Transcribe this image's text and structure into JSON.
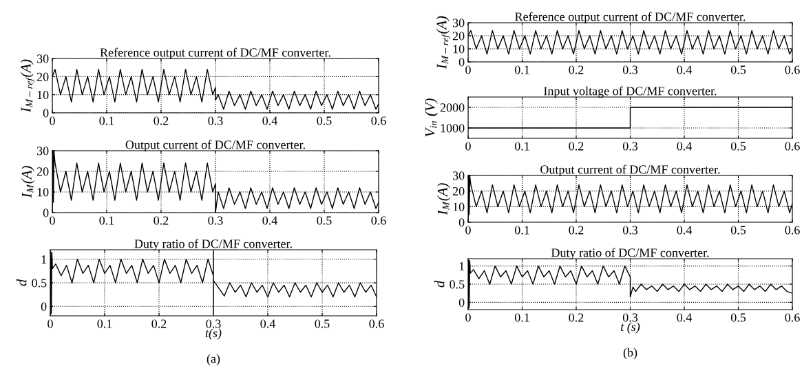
{
  "chart_data": [
    {
      "type": "line",
      "title": "Reference output current of DC/MF converter.",
      "ylabel": "I$_{M−ref}$(A)",
      "xlim": [
        0,
        0.6
      ],
      "xticks": [
        0,
        0.1,
        0.2,
        0.3,
        0.4,
        0.5,
        0.6
      ],
      "ylim": [
        0,
        30
      ],
      "yticks": [
        0,
        10,
        20,
        30
      ],
      "grid": true,
      "series": [
        {
          "color": "#000000",
          "x": [
            0,
            0.005,
            0.015,
            0.025,
            0.035,
            0.045,
            0.055,
            0.065,
            0.075,
            0.085,
            0.095,
            0.105,
            0.115,
            0.125,
            0.135,
            0.145,
            0.155,
            0.165,
            0.175,
            0.185,
            0.195,
            0.205,
            0.215,
            0.225,
            0.235,
            0.245,
            0.255,
            0.265,
            0.275,
            0.285,
            0.295,
            0.3,
            0.3,
            0.305,
            0.315,
            0.325,
            0.335,
            0.345,
            0.355,
            0.365,
            0.375,
            0.385,
            0.395,
            0.405,
            0.415,
            0.425,
            0.435,
            0.445,
            0.455,
            0.465,
            0.475,
            0.485,
            0.495,
            0.505,
            0.515,
            0.525,
            0.535,
            0.545,
            0.555,
            0.565,
            0.575,
            0.585,
            0.595,
            0.6
          ],
          "values": [
            20,
            24,
            10,
            20,
            6,
            24,
            10,
            20,
            6,
            24,
            10,
            20,
            6,
            24,
            10,
            20,
            6,
            24,
            10,
            20,
            6,
            24,
            10,
            20,
            6,
            24,
            10,
            20,
            6,
            24,
            10,
            14,
            7,
            10,
            2,
            12,
            4,
            10,
            2,
            12,
            4,
            10,
            2,
            12,
            4,
            10,
            2,
            12,
            4,
            10,
            2,
            12,
            4,
            10,
            2,
            12,
            4,
            10,
            2,
            12,
            4,
            10,
            2,
            5
          ]
        }
      ]
    },
    {
      "type": "line",
      "title": "Output current of DC/MF converter.",
      "ylabel": "I$_{M}$(A)",
      "xlim": [
        0,
        0.6
      ],
      "xticks": [
        0,
        0.1,
        0.2,
        0.3,
        0.4,
        0.5,
        0.6
      ],
      "ylim": [
        0,
        30
      ],
      "yticks": [
        0,
        10,
        20,
        30
      ],
      "grid": true,
      "series": [
        {
          "color": "#000000",
          "x": [
            0,
            0.001,
            0.002,
            0.003,
            0.005,
            0.015,
            0.025,
            0.035,
            0.045,
            0.055,
            0.065,
            0.075,
            0.085,
            0.095,
            0.105,
            0.115,
            0.125,
            0.135,
            0.145,
            0.155,
            0.165,
            0.175,
            0.185,
            0.195,
            0.205,
            0.215,
            0.225,
            0.235,
            0.245,
            0.255,
            0.265,
            0.275,
            0.285,
            0.295,
            0.3,
            0.3,
            0.305,
            0.315,
            0.325,
            0.335,
            0.345,
            0.355,
            0.365,
            0.375,
            0.385,
            0.395,
            0.405,
            0.415,
            0.425,
            0.435,
            0.445,
            0.455,
            0.465,
            0.475,
            0.485,
            0.495,
            0.505,
            0.515,
            0.525,
            0.535,
            0.545,
            0.555,
            0.565,
            0.575,
            0.585,
            0.595,
            0.6
          ],
          "values": [
            0,
            30,
            5,
            30,
            24,
            10,
            20,
            6,
            24,
            10,
            20,
            6,
            24,
            10,
            20,
            6,
            24,
            10,
            20,
            6,
            24,
            10,
            20,
            6,
            24,
            10,
            20,
            6,
            24,
            10,
            20,
            6,
            24,
            10,
            14,
            0,
            10,
            2,
            12,
            4,
            10,
            2,
            12,
            4,
            10,
            2,
            12,
            4,
            10,
            2,
            12,
            4,
            10,
            2,
            12,
            4,
            10,
            2,
            12,
            4,
            10,
            2,
            12,
            4,
            10,
            2,
            5
          ]
        }
      ]
    },
    {
      "type": "line",
      "title": "Duty ratio of DC/MF converter.",
      "ylabel": "d",
      "xlabel": "t(s)",
      "xlim": [
        0,
        0.6
      ],
      "xticks": [
        0,
        0.1,
        0.2,
        0.3,
        0.4,
        0.5,
        0.6
      ],
      "ylim": [
        -0.2,
        1.2
      ],
      "yticks": [
        0,
        0.5,
        1
      ],
      "grid": true,
      "annotations": [
        "(a)"
      ],
      "series": [
        {
          "color": "#000000",
          "x": [
            0,
            0.001,
            0.002,
            0.003,
            0.004,
            0.01,
            0.02,
            0.03,
            0.04,
            0.05,
            0.06,
            0.07,
            0.08,
            0.09,
            0.1,
            0.11,
            0.12,
            0.13,
            0.14,
            0.15,
            0.16,
            0.17,
            0.18,
            0.19,
            0.2,
            0.21,
            0.22,
            0.23,
            0.24,
            0.25,
            0.26,
            0.27,
            0.28,
            0.29,
            0.3,
            0.3,
            0.3,
            0.3,
            0.32,
            0.33,
            0.34,
            0.35,
            0.36,
            0.37,
            0.38,
            0.39,
            0.4,
            0.41,
            0.42,
            0.43,
            0.44,
            0.45,
            0.46,
            0.47,
            0.48,
            0.49,
            0.5,
            0.51,
            0.52,
            0.53,
            0.54,
            0.55,
            0.56,
            0.57,
            0.58,
            0.59,
            0.6
          ],
          "values": [
            -0.15,
            1.15,
            -0.15,
            1.15,
            0.8,
            0.9,
            0.65,
            0.87,
            0.5,
            1,
            0.7,
            0.87,
            0.5,
            1,
            0.7,
            0.87,
            0.5,
            1,
            0.7,
            0.87,
            0.5,
            1,
            0.7,
            0.87,
            0.5,
            1,
            0.7,
            0.87,
            0.5,
            1,
            0.7,
            0.87,
            0.5,
            1,
            0.65,
            1.15,
            -0.15,
            0.55,
            0.22,
            0.5,
            0.3,
            0.45,
            0.2,
            0.5,
            0.3,
            0.45,
            0.2,
            0.5,
            0.3,
            0.45,
            0.2,
            0.5,
            0.3,
            0.45,
            0.2,
            0.5,
            0.3,
            0.45,
            0.2,
            0.5,
            0.3,
            0.45,
            0.2,
            0.5,
            0.3,
            0.45,
            0.2
          ]
        }
      ]
    },
    {
      "type": "line",
      "title": "Reference output current of DC/MF converter.",
      "ylabel": "I$_{M−ref}$(A)",
      "xlim": [
        0,
        0.6
      ],
      "xticks": [
        0,
        0.1,
        0.2,
        0.3,
        0.4,
        0.5,
        0.6
      ],
      "ylim": [
        0,
        30
      ],
      "yticks": [
        0,
        10,
        20,
        30
      ],
      "grid": true,
      "series": [
        {
          "color": "#000000",
          "x": [
            0,
            0.005,
            0.015,
            0.025,
            0.035,
            0.045,
            0.055,
            0.065,
            0.075,
            0.085,
            0.095,
            0.105,
            0.115,
            0.125,
            0.135,
            0.145,
            0.155,
            0.165,
            0.175,
            0.185,
            0.195,
            0.205,
            0.215,
            0.225,
            0.235,
            0.245,
            0.255,
            0.265,
            0.275,
            0.285,
            0.295,
            0.305,
            0.315,
            0.325,
            0.335,
            0.345,
            0.355,
            0.365,
            0.375,
            0.385,
            0.395,
            0.405,
            0.415,
            0.425,
            0.435,
            0.445,
            0.455,
            0.465,
            0.475,
            0.485,
            0.495,
            0.505,
            0.515,
            0.525,
            0.535,
            0.545,
            0.555,
            0.565,
            0.575,
            0.585,
            0.595,
            0.6
          ],
          "values": [
            20,
            24,
            10,
            20,
            6,
            24,
            10,
            20,
            6,
            24,
            10,
            20,
            6,
            24,
            10,
            20,
            6,
            24,
            10,
            20,
            6,
            24,
            10,
            20,
            6,
            24,
            10,
            20,
            6,
            24,
            10,
            20,
            6,
            24,
            10,
            20,
            6,
            24,
            10,
            20,
            6,
            24,
            10,
            20,
            6,
            24,
            10,
            20,
            6,
            24,
            10,
            20,
            6,
            24,
            10,
            20,
            6,
            24,
            10,
            20,
            6,
            10
          ]
        }
      ]
    },
    {
      "type": "line",
      "title": "Input voltage of DC/MF converter.",
      "ylabel": "V$_{in}$ (V)",
      "xlim": [
        0,
        0.6
      ],
      "xticks": [
        0,
        0.1,
        0.2,
        0.3,
        0.4,
        0.5,
        0.6
      ],
      "ylim": [
        500,
        2500
      ],
      "yticks": [
        1000,
        2000
      ],
      "grid": true,
      "series": [
        {
          "color": "#000000",
          "x": [
            0,
            0.3,
            0.3,
            0.6
          ],
          "values": [
            1000,
            1000,
            2000,
            2000
          ]
        }
      ]
    },
    {
      "type": "line",
      "title": "Output current of DC/MF converter.",
      "ylabel": "I$_{M}$(A)",
      "xlim": [
        0,
        0.6
      ],
      "xticks": [
        0,
        0.1,
        0.2,
        0.3,
        0.4,
        0.5,
        0.6
      ],
      "ylim": [
        0,
        30
      ],
      "yticks": [
        0,
        10,
        20,
        30
      ],
      "grid": true,
      "series": [
        {
          "color": "#000000",
          "x": [
            0,
            0.001,
            0.002,
            0.003,
            0.005,
            0.015,
            0.025,
            0.035,
            0.045,
            0.055,
            0.065,
            0.075,
            0.085,
            0.095,
            0.105,
            0.115,
            0.125,
            0.135,
            0.145,
            0.155,
            0.165,
            0.175,
            0.185,
            0.195,
            0.205,
            0.215,
            0.225,
            0.235,
            0.245,
            0.255,
            0.265,
            0.275,
            0.285,
            0.295,
            0.305,
            0.315,
            0.325,
            0.335,
            0.345,
            0.355,
            0.365,
            0.375,
            0.385,
            0.395,
            0.405,
            0.415,
            0.425,
            0.435,
            0.445,
            0.455,
            0.465,
            0.475,
            0.485,
            0.495,
            0.505,
            0.515,
            0.525,
            0.535,
            0.545,
            0.555,
            0.565,
            0.575,
            0.585,
            0.595,
            0.6
          ],
          "values": [
            0,
            30,
            5,
            30,
            24,
            10,
            20,
            6,
            24,
            10,
            20,
            6,
            24,
            10,
            20,
            6,
            24,
            10,
            20,
            6,
            24,
            10,
            20,
            6,
            24,
            10,
            20,
            6,
            24,
            10,
            20,
            6,
            24,
            10,
            20,
            6,
            24,
            10,
            20,
            6,
            24,
            10,
            20,
            6,
            24,
            10,
            20,
            6,
            24,
            10,
            20,
            6,
            24,
            10,
            20,
            6,
            24,
            10,
            20,
            6,
            24,
            10,
            20,
            6,
            12
          ]
        }
      ]
    },
    {
      "type": "line",
      "title": "Duty ratio of DC/MF converter.",
      "ylabel": "d",
      "xlabel": "t (s)",
      "xlim": [
        0,
        0.6
      ],
      "xticks": [
        0,
        0.1,
        0.2,
        0.3,
        0.4,
        0.5,
        0.6
      ],
      "ylim": [
        -0.2,
        1.2
      ],
      "yticks": [
        0,
        0.5,
        1
      ],
      "grid": true,
      "annotations": [
        "(b)"
      ],
      "series": [
        {
          "color": "#000000",
          "x": [
            0,
            0.001,
            0.002,
            0.003,
            0.004,
            0.01,
            0.02,
            0.03,
            0.04,
            0.05,
            0.06,
            0.07,
            0.08,
            0.09,
            0.1,
            0.11,
            0.12,
            0.13,
            0.14,
            0.15,
            0.16,
            0.17,
            0.18,
            0.19,
            0.2,
            0.21,
            0.22,
            0.23,
            0.24,
            0.25,
            0.26,
            0.27,
            0.28,
            0.29,
            0.3,
            0.3,
            0.305,
            0.31,
            0.32,
            0.33,
            0.34,
            0.35,
            0.36,
            0.37,
            0.38,
            0.39,
            0.4,
            0.41,
            0.42,
            0.43,
            0.44,
            0.45,
            0.46,
            0.47,
            0.48,
            0.49,
            0.5,
            0.51,
            0.52,
            0.53,
            0.54,
            0.55,
            0.56,
            0.57,
            0.58,
            0.59,
            0.6
          ],
          "values": [
            -0.15,
            1.15,
            -0.15,
            1.15,
            0.8,
            0.9,
            0.65,
            0.87,
            0.5,
            1,
            0.7,
            0.87,
            0.5,
            1,
            0.7,
            0.87,
            0.5,
            1,
            0.7,
            0.87,
            0.5,
            1,
            0.7,
            0.87,
            0.5,
            1,
            0.7,
            0.87,
            0.5,
            1,
            0.7,
            0.87,
            0.5,
            1,
            0.7,
            0.15,
            0.42,
            0.3,
            0.5,
            0.35,
            0.45,
            0.3,
            0.5,
            0.35,
            0.45,
            0.3,
            0.5,
            0.35,
            0.45,
            0.3,
            0.5,
            0.35,
            0.45,
            0.3,
            0.5,
            0.35,
            0.45,
            0.3,
            0.5,
            0.35,
            0.45,
            0.3,
            0.5,
            0.35,
            0.45,
            0.3,
            0.25
          ]
        }
      ]
    }
  ]
}
